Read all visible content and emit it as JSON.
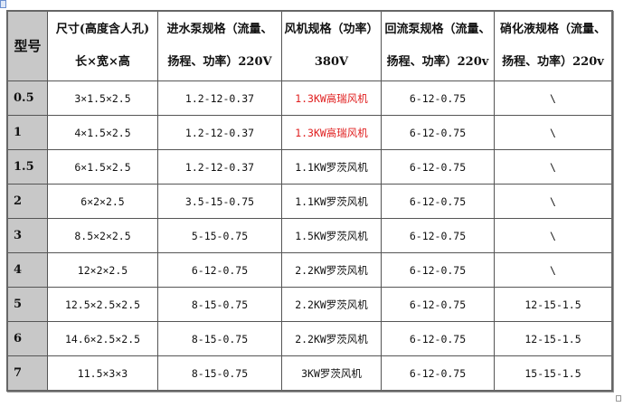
{
  "headers": [
    {
      "line1": "型号",
      "line2": ""
    },
    {
      "line1": "尺寸(高度含人孔)",
      "line2": "长×宽×高"
    },
    {
      "line1": "进水泵规格（流量、",
      "line2": "扬程、功率）220V"
    },
    {
      "line1": "风机规格（功率）",
      "line2": "380V"
    },
    {
      "line1": "回流泵规格（流量、",
      "line2": "扬程、功率）220v"
    },
    {
      "line1": "硝化液规格（流量、",
      "line2": "扬程、功率）220v"
    }
  ],
  "highlight_color": "#e02020",
  "rows": [
    {
      "model": "0.5",
      "size": "3×1.5×2.5",
      "inlet_pump": "1.2-12-0.37",
      "blower": "1.3KW高瑞风机",
      "blower_highlight": true,
      "return_pump": "6-12-0.75",
      "nitrate": "\\"
    },
    {
      "model": "1",
      "size": "4×1.5×2.5",
      "inlet_pump": "1.2-12-0.37",
      "blower": "1.3KW高瑞风机",
      "blower_highlight": true,
      "return_pump": "6-12-0.75",
      "nitrate": "\\"
    },
    {
      "model": "1.5",
      "size": "6×1.5×2.5",
      "inlet_pump": "1.2-12-0.37",
      "blower": "1.1KW罗茨风机",
      "blower_highlight": false,
      "return_pump": "6-12-0.75",
      "nitrate": "\\"
    },
    {
      "model": "2",
      "size": "6×2×2.5",
      "inlet_pump": "3.5-15-0.75",
      "blower": "1.1KW罗茨风机",
      "blower_highlight": false,
      "return_pump": "6-12-0.75",
      "nitrate": "\\"
    },
    {
      "model": "3",
      "size": "8.5×2×2.5",
      "inlet_pump": "5-15-0.75",
      "blower": "1.5KW罗茨风机",
      "blower_highlight": false,
      "return_pump": "6-12-0.75",
      "nitrate": "\\"
    },
    {
      "model": "4",
      "size": "12×2×2.5",
      "inlet_pump": "6-12-0.75",
      "blower": "2.2KW罗茨风机",
      "blower_highlight": false,
      "return_pump": "6-12-0.75",
      "nitrate": "\\"
    },
    {
      "model": "5",
      "size": "12.5×2.5×2.5",
      "inlet_pump": "8-15-0.75",
      "blower": "2.2KW罗茨风机",
      "blower_highlight": false,
      "return_pump": "6-12-0.75",
      "nitrate": "12-15-1.5"
    },
    {
      "model": "6",
      "size": "14.6×2.5×2.5",
      "inlet_pump": "8-15-0.75",
      "blower": "2.2KW罗茨风机",
      "blower_highlight": false,
      "return_pump": "6-12-0.75",
      "nitrate": "12-15-1.5"
    },
    {
      "model": "7",
      "size": "11.5×3×3",
      "inlet_pump": "8-15-0.75",
      "blower": "3KW罗茨风机",
      "blower_highlight": false,
      "return_pump": "6-12-0.75",
      "nitrate": "15-15-1.5"
    }
  ]
}
